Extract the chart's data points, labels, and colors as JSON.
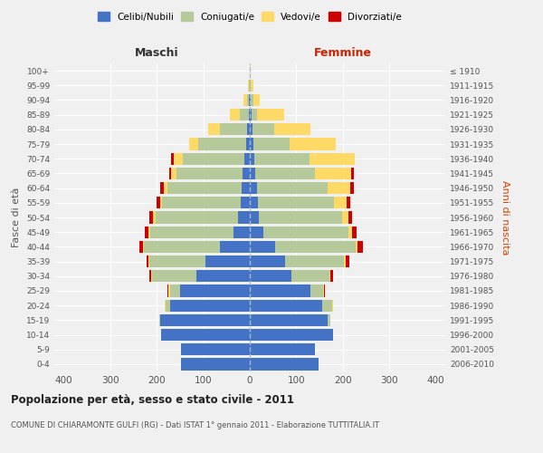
{
  "age_groups": [
    "0-4",
    "5-9",
    "10-14",
    "15-19",
    "20-24",
    "25-29",
    "30-34",
    "35-39",
    "40-44",
    "45-49",
    "50-54",
    "55-59",
    "60-64",
    "65-69",
    "70-74",
    "75-79",
    "80-84",
    "85-89",
    "90-94",
    "95-99",
    "100+"
  ],
  "birth_years": [
    "2006-2010",
    "2001-2005",
    "1996-2000",
    "1991-1995",
    "1986-1990",
    "1981-1985",
    "1976-1980",
    "1971-1975",
    "1966-1970",
    "1961-1965",
    "1956-1960",
    "1951-1955",
    "1946-1950",
    "1941-1945",
    "1936-1940",
    "1931-1935",
    "1926-1930",
    "1921-1925",
    "1916-1920",
    "1911-1915",
    "≤ 1910"
  ],
  "colors": {
    "celibi": "#4472c4",
    "coniugati": "#b5c99a",
    "vedovi": "#ffd966",
    "divorziati": "#cc0000"
  },
  "males": {
    "celibi": [
      148,
      148,
      190,
      192,
      172,
      150,
      115,
      95,
      65,
      35,
      25,
      20,
      18,
      15,
      12,
      8,
      5,
      2,
      1,
      0,
      0
    ],
    "coniugati": [
      0,
      0,
      0,
      2,
      8,
      22,
      95,
      120,
      162,
      178,
      178,
      168,
      158,
      142,
      132,
      102,
      60,
      20,
      5,
      2,
      0
    ],
    "vedovi": [
      0,
      0,
      0,
      0,
      2,
      3,
      2,
      2,
      2,
      4,
      5,
      5,
      8,
      12,
      20,
      20,
      25,
      20,
      8,
      2,
      0
    ],
    "divorziati": [
      0,
      0,
      0,
      0,
      0,
      2,
      3,
      5,
      8,
      8,
      8,
      8,
      8,
      5,
      5,
      0,
      0,
      0,
      0,
      0,
      0
    ]
  },
  "females": {
    "celibi": [
      148,
      140,
      178,
      168,
      155,
      130,
      90,
      75,
      55,
      30,
      20,
      18,
      15,
      12,
      10,
      8,
      5,
      3,
      2,
      0,
      0
    ],
    "coniugati": [
      0,
      0,
      0,
      5,
      22,
      28,
      82,
      128,
      172,
      182,
      178,
      162,
      152,
      128,
      118,
      78,
      48,
      12,
      5,
      2,
      0
    ],
    "vedovi": [
      0,
      0,
      0,
      0,
      2,
      2,
      2,
      3,
      4,
      8,
      14,
      28,
      48,
      78,
      98,
      98,
      78,
      58,
      15,
      5,
      2
    ],
    "divorziati": [
      0,
      0,
      0,
      0,
      0,
      2,
      5,
      8,
      12,
      10,
      8,
      8,
      8,
      5,
      0,
      0,
      0,
      0,
      0,
      0,
      0
    ]
  },
  "title": "Popolazione per età, sesso e stato civile - 2011",
  "subtitle": "COMUNE DI CHIARAMONTE GULFI (RG) - Dati ISTAT 1° gennaio 2011 - Elaborazione TUTTITALIA.IT",
  "xlabel_left": "Maschi",
  "xlabel_right": "Femmine",
  "ylabel_left": "Fasce di età",
  "ylabel_right": "Anni di nascita",
  "xlim": 420,
  "legend_labels": [
    "Celibi/Nubili",
    "Coniugati/e",
    "Vedovi/e",
    "Divorziati/e"
  ],
  "background_color": "#f0f0f0"
}
